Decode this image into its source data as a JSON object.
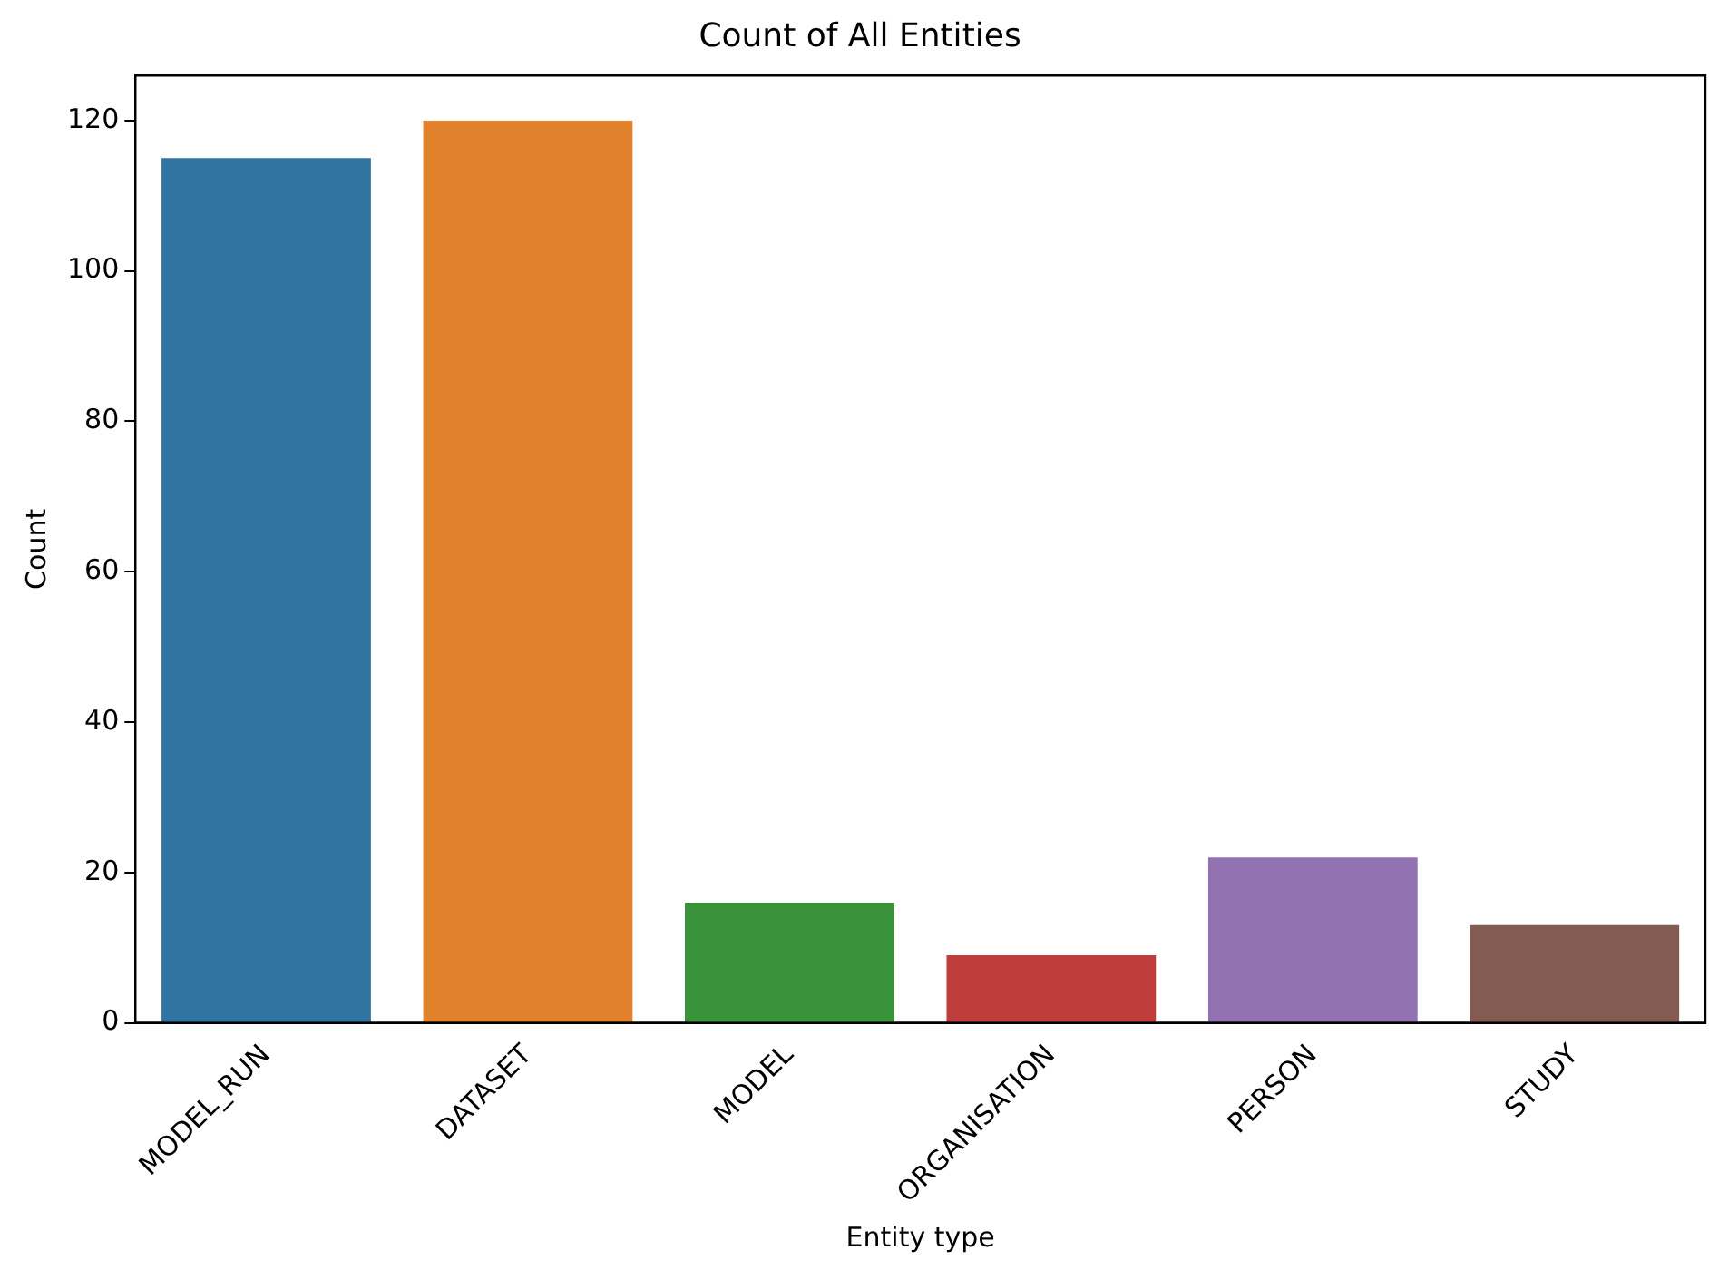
{
  "chart_data": {
    "type": "bar",
    "title": "Count of All Entities",
    "xlabel": "Entity type",
    "ylabel": "Count",
    "categories": [
      "MODEL_RUN",
      "DATASET",
      "MODEL",
      "ORGANISATION",
      "PERSON",
      "STUDY"
    ],
    "values": [
      115,
      120,
      16,
      9,
      22,
      13
    ],
    "colors": [
      "#3274a1",
      "#e1812c",
      "#3a923a",
      "#c03d3e",
      "#9372b2",
      "#845b53"
    ],
    "ylim": [
      0,
      126
    ],
    "yticks": [
      0,
      20,
      40,
      60,
      80,
      100,
      120
    ],
    "grid": false,
    "legend": false
  }
}
